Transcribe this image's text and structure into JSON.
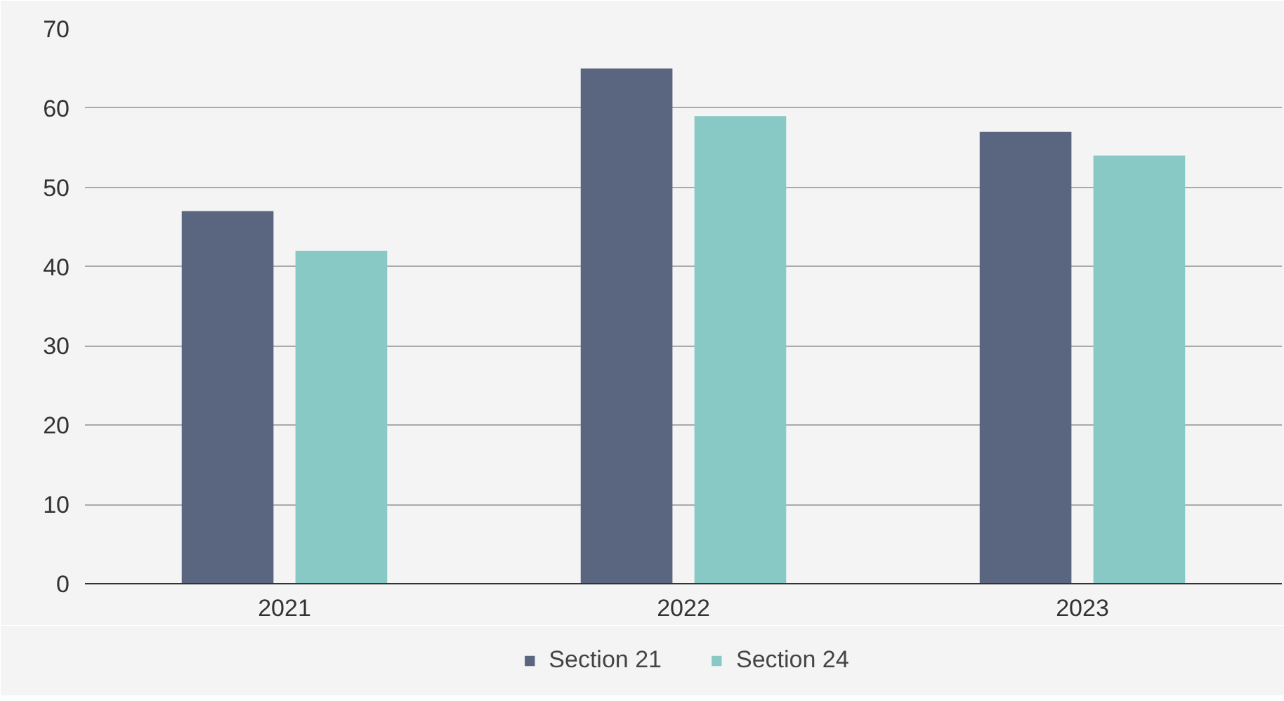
{
  "chart_data": {
    "type": "bar",
    "categories": [
      "2021",
      "2022",
      "2023"
    ],
    "series": [
      {
        "name": "Section 21",
        "color": "#5a6680",
        "values": [
          47,
          65,
          57
        ]
      },
      {
        "name": "Section 24",
        "color": "#88c9c5",
        "values": [
          42,
          59,
          54
        ]
      }
    ],
    "ylim": [
      0,
      70
    ],
    "yticks": [
      0,
      10,
      20,
      30,
      40,
      50,
      60,
      70
    ],
    "grid": "y",
    "legend": "bottom"
  }
}
